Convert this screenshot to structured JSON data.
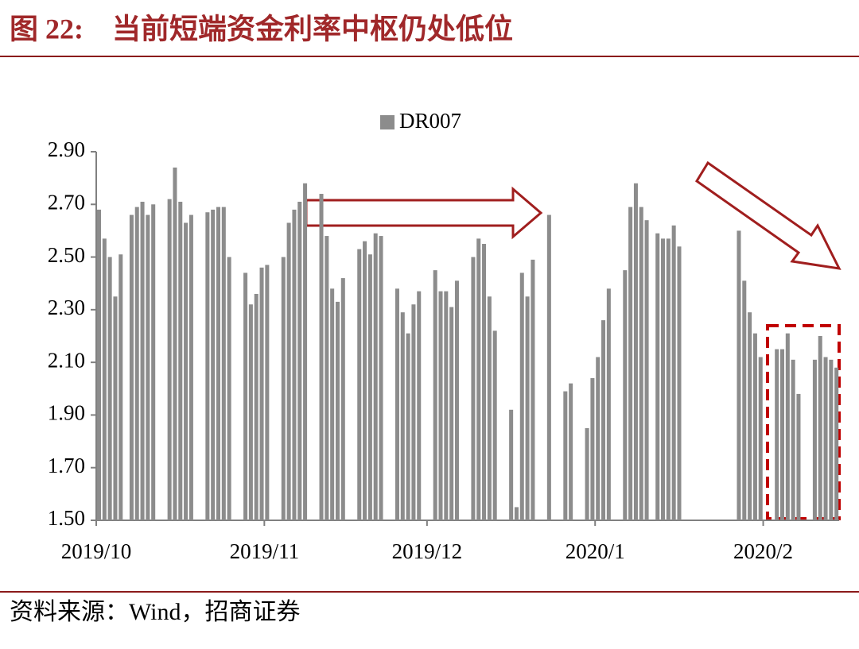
{
  "chart_data": {
    "type": "bar",
    "title": "图 22:　当前短端资金利率中枢仍处低位",
    "source": "资料来源：Wind，招商证券",
    "categories": [
      "2019/10",
      null,
      null,
      null,
      null,
      null,
      null,
      null,
      null,
      null,
      null,
      null,
      null,
      null,
      null,
      null,
      null,
      null,
      null,
      null,
      null,
      null,
      null,
      null,
      null,
      null,
      null,
      null,
      null,
      null,
      null,
      "2019/11",
      null,
      null,
      null,
      null,
      null,
      null,
      null,
      null,
      null,
      null,
      null,
      null,
      null,
      null,
      null,
      null,
      null,
      null,
      null,
      null,
      null,
      null,
      null,
      null,
      null,
      null,
      null,
      null,
      null,
      "2019/12",
      null,
      null,
      null,
      null,
      null,
      null,
      null,
      null,
      null,
      null,
      null,
      null,
      null,
      null,
      null,
      null,
      null,
      null,
      null,
      null,
      null,
      null,
      null,
      null,
      null,
      null,
      null,
      null,
      null,
      null,
      "2020/1",
      null,
      null,
      null,
      null,
      null,
      null,
      null,
      null,
      null,
      null,
      null,
      null,
      null,
      null,
      null,
      null,
      null,
      null,
      null,
      null,
      null,
      null,
      null,
      null,
      null,
      null,
      null,
      null,
      null,
      null,
      "2020/2",
      null,
      null,
      null,
      null,
      null,
      null,
      null,
      null,
      null,
      null,
      null,
      null,
      null
    ],
    "series": [
      {
        "name": "DR007",
        "color": "#8c8c8c",
        "values": [
          2.68,
          2.57,
          2.5,
          2.35,
          2.51,
          null,
          2.66,
          2.69,
          2.71,
          2.66,
          2.7,
          null,
          null,
          2.72,
          2.84,
          2.71,
          2.63,
          2.66,
          null,
          null,
          2.67,
          2.68,
          2.69,
          2.69,
          2.5,
          null,
          null,
          2.44,
          2.32,
          2.36,
          2.46,
          2.47,
          null,
          null,
          2.5,
          2.63,
          2.68,
          2.71,
          2.78,
          null,
          null,
          2.74,
          2.58,
          2.38,
          2.33,
          2.42,
          null,
          null,
          2.53,
          2.56,
          2.51,
          2.59,
          2.58,
          null,
          null,
          2.38,
          2.29,
          2.21,
          2.32,
          2.37,
          null,
          null,
          2.45,
          2.37,
          2.37,
          2.31,
          2.41,
          null,
          null,
          2.5,
          2.57,
          2.55,
          2.35,
          2.22,
          null,
          null,
          1.92,
          1.55,
          2.44,
          2.35,
          2.49,
          null,
          null,
          2.66,
          null,
          null,
          1.99,
          2.02,
          null,
          null,
          1.85,
          2.04,
          2.12,
          2.26,
          2.38,
          null,
          null,
          2.45,
          2.69,
          2.78,
          2.69,
          2.64,
          null,
          2.59,
          2.57,
          2.57,
          2.62,
          2.54,
          null,
          null,
          null,
          null,
          null,
          null,
          null,
          null,
          null,
          null,
          2.6,
          2.41,
          2.29,
          2.21,
          2.12,
          null,
          null,
          2.15,
          2.15,
          2.21,
          2.11,
          1.98,
          null,
          null,
          2.11,
          2.2,
          2.12,
          2.11,
          2.08
        ]
      }
    ],
    "ylim": [
      1.5,
      2.9
    ],
    "yticks": [
      {
        "value": 1.5,
        "label": "1.50"
      },
      {
        "value": 1.7,
        "label": "1.70"
      },
      {
        "value": 1.9,
        "label": "1.90"
      },
      {
        "value": 2.1,
        "label": "2.10"
      },
      {
        "value": 2.3,
        "label": "2.30"
      },
      {
        "value": 2.5,
        "label": "2.50"
      },
      {
        "value": 2.7,
        "label": "2.70"
      },
      {
        "value": 2.9,
        "label": "2.90"
      }
    ],
    "legend": "top"
  }
}
